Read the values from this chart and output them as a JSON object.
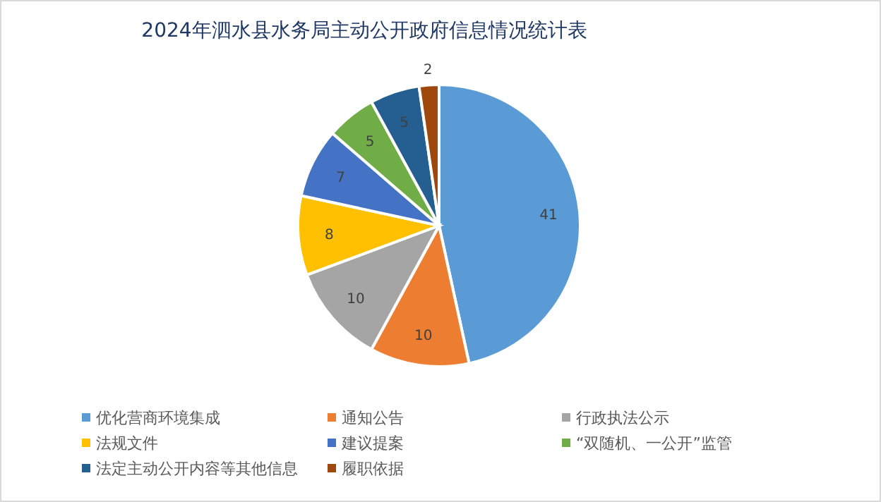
{
  "chart_data": {
    "type": "pie",
    "title": "2024年泗水县水务局主动公开政府信息情况统计表",
    "categories": [
      "优化营商环境集成",
      "通知公告",
      "行政执法公示",
      "法规文件",
      "建议提案",
      "“双随机、一公开”监管",
      "法定主动公开内容等其他信息",
      "履职依据"
    ],
    "values": [
      41,
      10,
      10,
      8,
      7,
      5,
      5,
      2
    ],
    "colors": [
      "#5b9bd5",
      "#ed7d31",
      "#a5a5a5",
      "#ffc000",
      "#4472c4",
      "#70ad47",
      "#255e91",
      "#9e480e"
    ],
    "data_labels": true,
    "legend": "bottom"
  }
}
